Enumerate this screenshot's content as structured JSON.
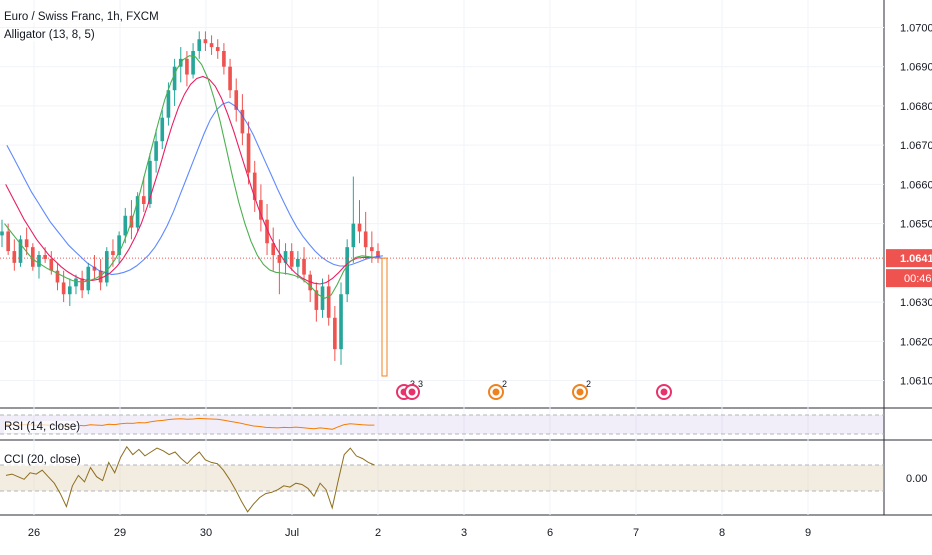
{
  "chart_data": {
    "type": "candlestick",
    "symbol_title": "Euro / Swiss Franc, 1h, FXCM",
    "indicator_labels": {
      "alligator": "Alligator (13, 8, 5)",
      "rsi": "RSI (14, close)",
      "cci": "CCI (20, close)"
    },
    "price_axis": {
      "ylim": [
        1.0603,
        1.0707
      ],
      "ticks": [
        "1.07000",
        "1.06900",
        "1.06800",
        "1.06700",
        "1.06600",
        "1.06500",
        "1.06300",
        "1.06200",
        "1.06100"
      ]
    },
    "last_price": {
      "value": 1.06412,
      "label": "1.06412",
      "countdown": "00:46"
    },
    "time_axis": {
      "ticks": [
        "26",
        "29",
        "30",
        "Jul",
        "2",
        "3",
        "6",
        "7",
        "8",
        "9"
      ]
    },
    "ohlc": [
      [
        1.0647,
        1.0651,
        1.0644,
        1.0648
      ],
      [
        1.0648,
        1.065,
        1.0642,
        1.0643
      ],
      [
        1.0643,
        1.0646,
        1.0638,
        1.064
      ],
      [
        1.064,
        1.0647,
        1.0639,
        1.0646
      ],
      [
        1.0646,
        1.0649,
        1.0642,
        1.0644
      ],
      [
        1.0644,
        1.0645,
        1.0638,
        1.0639
      ],
      [
        1.0639,
        1.0643,
        1.0636,
        1.0642
      ],
      [
        1.0642,
        1.0644,
        1.064,
        1.0641
      ],
      [
        1.0641,
        1.0643,
        1.0637,
        1.0638
      ],
      [
        1.0638,
        1.064,
        1.0633,
        1.0635
      ],
      [
        1.0635,
        1.0638,
        1.063,
        1.0632
      ],
      [
        1.0632,
        1.0636,
        1.0629,
        1.0634
      ],
      [
        1.0634,
        1.0637,
        1.0632,
        1.0636
      ],
      [
        1.0636,
        1.0638,
        1.0631,
        1.0633
      ],
      [
        1.0633,
        1.064,
        1.0632,
        1.0639
      ],
      [
        1.0639,
        1.0642,
        1.0636,
        1.0638
      ],
      [
        1.0638,
        1.0641,
        1.0633,
        1.0635
      ],
      [
        1.0635,
        1.0644,
        1.0634,
        1.0643
      ],
      [
        1.0643,
        1.0646,
        1.0639,
        1.0642
      ],
      [
        1.0642,
        1.0648,
        1.064,
        1.0647
      ],
      [
        1.0647,
        1.0654,
        1.0645,
        1.0652
      ],
      [
        1.0652,
        1.0656,
        1.0646,
        1.0649
      ],
      [
        1.0649,
        1.0658,
        1.0648,
        1.0657
      ],
      [
        1.0657,
        1.0662,
        1.0653,
        1.0655
      ],
      [
        1.0655,
        1.0668,
        1.0654,
        1.0666
      ],
      [
        1.0666,
        1.0674,
        1.0663,
        1.0671
      ],
      [
        1.0671,
        1.0679,
        1.0669,
        1.0677
      ],
      [
        1.0677,
        1.0686,
        1.0675,
        1.0684
      ],
      [
        1.0684,
        1.0692,
        1.068,
        1.069
      ],
      [
        1.069,
        1.0695,
        1.0686,
        1.0692
      ],
      [
        1.0692,
        1.0694,
        1.0685,
        1.0688
      ],
      [
        1.0688,
        1.0696,
        1.0687,
        1.0694
      ],
      [
        1.0694,
        1.0699,
        1.0692,
        1.0697
      ],
      [
        1.0697,
        1.0699,
        1.0694,
        1.0696
      ],
      [
        1.0696,
        1.0698,
        1.0693,
        1.0695
      ],
      [
        1.0695,
        1.0697,
        1.0692,
        1.0694
      ],
      [
        1.0694,
        1.0696,
        1.0688,
        1.069
      ],
      [
        1.069,
        1.0692,
        1.0682,
        1.0684
      ],
      [
        1.0684,
        1.0687,
        1.0676,
        1.0679
      ],
      [
        1.0679,
        1.0683,
        1.067,
        1.0673
      ],
      [
        1.0673,
        1.0676,
        1.066,
        1.0663
      ],
      [
        1.0663,
        1.0666,
        1.0653,
        1.0656
      ],
      [
        1.0656,
        1.066,
        1.0648,
        1.0651
      ],
      [
        1.0651,
        1.0655,
        1.0642,
        1.0645
      ],
      [
        1.0645,
        1.0649,
        1.0638,
        1.0642
      ],
      [
        1.0642,
        1.0646,
        1.0632,
        1.064
      ],
      [
        1.064,
        1.0645,
        1.0637,
        1.0643
      ],
      [
        1.0643,
        1.0645,
        1.0638,
        1.0639
      ],
      [
        1.0639,
        1.0643,
        1.0636,
        1.0641
      ],
      [
        1.0641,
        1.0644,
        1.0635,
        1.0637
      ],
      [
        1.0637,
        1.0638,
        1.063,
        1.0633
      ],
      [
        1.0633,
        1.0635,
        1.0625,
        1.0628
      ],
      [
        1.0628,
        1.0636,
        1.0626,
        1.0634
      ],
      [
        1.0634,
        1.0637,
        1.0624,
        1.0626
      ],
      [
        1.0626,
        1.0629,
        1.0615,
        1.0618
      ],
      [
        1.0618,
        1.0635,
        1.0614,
        1.0632
      ],
      [
        1.0632,
        1.0646,
        1.063,
        1.0644
      ],
      [
        1.0644,
        1.0662,
        1.064,
        1.065
      ],
      [
        1.065,
        1.0656,
        1.0645,
        1.0648
      ],
      [
        1.0648,
        1.0653,
        1.0641,
        1.0644
      ],
      [
        1.0644,
        1.0648,
        1.064,
        1.0643
      ],
      [
        1.0643,
        1.0645,
        1.064,
        1.06412
      ]
    ],
    "alligator": {
      "jaw": [
        1.067,
        1.0667,
        1.0664,
        1.0661,
        1.0658,
        1.06555,
        1.0653,
        1.06505,
        1.06485,
        1.06465,
        1.06445,
        1.0643,
        1.06415,
        1.064,
        1.0639,
        1.0638,
        1.06375,
        1.0637,
        1.06372,
        1.06376,
        1.06382,
        1.06392,
        1.06405,
        1.0642,
        1.0644,
        1.06465,
        1.06495,
        1.0653,
        1.0657,
        1.0661,
        1.0665,
        1.0669,
        1.0673,
        1.06765,
        1.0679,
        1.06805,
        1.0681,
        1.068,
        1.0678,
        1.06755,
        1.06725,
        1.0669,
        1.06655,
        1.0662,
        1.06585,
        1.06552,
        1.0652,
        1.06492,
        1.06468,
        1.06448,
        1.0643,
        1.06415,
        1.06404,
        1.06396,
        1.06392,
        1.06392,
        1.06396,
        1.06402,
        1.06408,
        1.06413,
        1.06416,
        1.06418
      ],
      "teeth": [
        1.066,
        1.0657,
        1.0654,
        1.0651,
        1.06485,
        1.0646,
        1.0644,
        1.0642,
        1.06405,
        1.0639,
        1.06378,
        1.06368,
        1.0636,
        1.06356,
        1.06355,
        1.06358,
        1.06365,
        1.06375,
        1.0639,
        1.0641,
        1.06435,
        1.06465,
        1.065,
        1.06545,
        1.06595,
        1.06645,
        1.067,
        1.0675,
        1.06795,
        1.0683,
        1.06855,
        1.0687,
        1.06875,
        1.06868,
        1.0685,
        1.0682,
        1.0678,
        1.06735,
        1.06685,
        1.06635,
        1.06585,
        1.0654,
        1.065,
        1.06465,
        1.06435,
        1.0641,
        1.0639,
        1.06374,
        1.06362,
        1.06354,
        1.06348,
        1.06346,
        1.0635,
        1.0636,
        1.06375,
        1.06392,
        1.06405,
        1.06412,
        1.06414,
        1.06414,
        1.06413,
        1.06412
      ],
      "lips": [
        1.065,
        1.0648,
        1.0646,
        1.0644,
        1.0642,
        1.06405,
        1.06395,
        1.06385,
        1.06378,
        1.0637,
        1.06362,
        1.06355,
        1.06352,
        1.06352,
        1.06356,
        1.06362,
        1.06372,
        1.06388,
        1.0641,
        1.0644,
        1.06478,
        1.06525,
        1.0658,
        1.0664,
        1.067,
        1.0676,
        1.06815,
        1.0686,
        1.06895,
        1.06918,
        1.06928,
        1.06925,
        1.06905,
        1.0687,
        1.0682,
        1.0676,
        1.0669,
        1.0662,
        1.06555,
        1.065,
        1.06455,
        1.0642,
        1.06396,
        1.06382,
        1.06376,
        1.06374,
        1.06372,
        1.06368,
        1.06362,
        1.0635,
        1.06334,
        1.06318,
        1.0631,
        1.06318,
        1.06345,
        1.06378,
        1.06402,
        1.06414,
        1.06418,
        1.06416,
        1.06414,
        1.06412
      ]
    },
    "rsi": {
      "label_upper": "",
      "values": [
        48,
        47,
        46,
        48,
        47,
        45,
        47,
        46,
        45,
        43,
        42,
        44,
        45,
        44,
        47,
        46,
        45,
        49,
        48,
        51,
        53,
        52,
        55,
        54,
        58,
        61,
        63,
        66,
        68,
        69,
        67,
        68,
        70,
        69,
        68,
        67,
        64,
        60,
        56,
        52,
        47,
        43,
        41,
        38,
        37,
        36,
        38,
        37,
        39,
        37,
        35,
        33,
        36,
        34,
        31,
        40,
        48,
        51,
        49,
        47,
        46,
        46
      ]
    },
    "cci": {
      "zero_label": "0.00",
      "values": [
        20,
        30,
        10,
        -10,
        40,
        30,
        60,
        10,
        -40,
        -120,
        -220,
        -60,
        20,
        -30,
        80,
        10,
        -20,
        120,
        40,
        160,
        240,
        180,
        220,
        170,
        200,
        230,
        210,
        180,
        200,
        150,
        110,
        160,
        200,
        140,
        120,
        110,
        60,
        -10,
        -90,
        -180,
        -260,
        -200,
        -150,
        -120,
        -110,
        -90,
        -60,
        -70,
        -40,
        -50,
        -80,
        -140,
        -40,
        -90,
        -230,
        -20,
        180,
        230,
        170,
        150,
        120,
        100
      ]
    },
    "event_badges": [
      {
        "count": "3",
        "color": "#e8326b"
      },
      {
        "count": "3",
        "color": "#e8326b"
      },
      {
        "count": "2",
        "color": "#f0821e"
      },
      {
        "count": "2",
        "color": "#f0821e"
      },
      {
        "count": "",
        "color": "#e8326b"
      }
    ],
    "colors": {
      "bull": "#26a69a",
      "bear": "#ef5350",
      "jaw": "#2962ff",
      "teeth": "#e91e63",
      "lips": "#4caf50",
      "price_line": "#ef5350",
      "rsi_line": "#f57c00",
      "rsi_band": "#7e57c2",
      "cci_line": "#8d6e1e",
      "cci_band": "#d6c49a"
    }
  }
}
